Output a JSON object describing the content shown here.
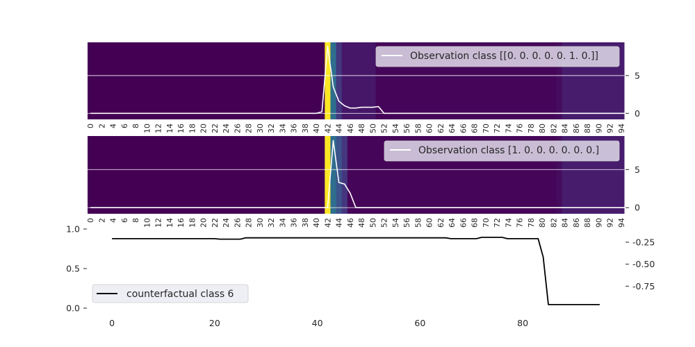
{
  "colors": {
    "viridis_low": "#440154",
    "viridis_high": "#fde725",
    "observation_line": "#ffffff",
    "counterfactual_line": "#000000",
    "legend_bg": "#eaeaf2",
    "text": "#262626"
  },
  "chart_data": [
    {
      "type": "heatmap",
      "overlay": "line",
      "legend": "Observation class [[0. 0. 0. 0. 0. 1. 0.]]",
      "legend_position": "top-right",
      "x_tick_labels": [
        "0",
        "2",
        "4",
        "6",
        "8",
        "10",
        "12",
        "14",
        "16",
        "18",
        "20",
        "22",
        "24",
        "26",
        "28",
        "30",
        "32",
        "34",
        "36",
        "38",
        "40",
        "42",
        "44",
        "46",
        "48",
        "50",
        "52",
        "54",
        "56",
        "58",
        "60",
        "62",
        "64",
        "66",
        "68",
        "70",
        "72",
        "74",
        "76",
        "78",
        "80",
        "82",
        "84",
        "86",
        "88",
        "90",
        "92",
        "94"
      ],
      "y_ticks_right": [
        0,
        5
      ],
      "ylim": [
        -0.8,
        9.4
      ],
      "grid": true,
      "heat_segments": [
        {
          "from": 0,
          "to": 42,
          "level": 0.0
        },
        {
          "from": 42,
          "to": 43,
          "level": 1.0
        },
        {
          "from": 43,
          "to": 44,
          "level": 0.45
        },
        {
          "from": 44,
          "to": 45,
          "level": 0.2
        },
        {
          "from": 45,
          "to": 51,
          "level": 0.08
        },
        {
          "from": 51,
          "to": 83,
          "level": 0.02
        },
        {
          "from": 83,
          "to": 84,
          "level": 0.04
        },
        {
          "from": 84,
          "to": 95,
          "level": 0.1
        }
      ],
      "series": [
        {
          "x": [
            0,
            38,
            39,
            40,
            41,
            42,
            43,
            44,
            45,
            46,
            47,
            48,
            49,
            50,
            51,
            52,
            95
          ],
          "y": [
            0,
            0,
            0,
            0,
            0.2,
            8.9,
            3.5,
            1.6,
            1.0,
            0.7,
            0.7,
            0.8,
            0.8,
            0.8,
            0.9,
            0,
            0
          ]
        }
      ]
    },
    {
      "type": "heatmap",
      "overlay": "line",
      "legend": "Observation class [1. 0. 0. 0. 0. 0. 0.]",
      "legend_position": "top-right",
      "x_tick_labels": [
        "0",
        "2",
        "4",
        "6",
        "8",
        "10",
        "12",
        "14",
        "16",
        "18",
        "20",
        "22",
        "24",
        "26",
        "28",
        "30",
        "32",
        "34",
        "36",
        "38",
        "40",
        "42",
        "44",
        "46",
        "48",
        "50",
        "52",
        "54",
        "56",
        "58",
        "60",
        "62",
        "64",
        "66",
        "68",
        "70",
        "72",
        "74",
        "76",
        "78",
        "80",
        "82",
        "84",
        "86",
        "88",
        "90",
        "92",
        "94"
      ],
      "y_ticks_right": [
        0,
        5
      ],
      "ylim": [
        -0.8,
        9.4
      ],
      "grid": true,
      "heat_segments": [
        {
          "from": 0,
          "to": 42,
          "level": 0.0
        },
        {
          "from": 42,
          "to": 43,
          "level": 1.0
        },
        {
          "from": 43,
          "to": 44,
          "level": 0.45
        },
        {
          "from": 44,
          "to": 45,
          "level": 0.32
        },
        {
          "from": 45,
          "to": 46,
          "level": 0.2
        },
        {
          "from": 46,
          "to": 83,
          "level": 0.02
        },
        {
          "from": 83,
          "to": 84,
          "level": 0.04
        },
        {
          "from": 84,
          "to": 95,
          "level": 0.1
        }
      ],
      "series": [
        {
          "x": [
            0,
            41,
            42,
            43,
            44,
            45,
            46,
            47,
            95
          ],
          "y": [
            0,
            0,
            0,
            8.8,
            3.3,
            3.1,
            1.9,
            0,
            0
          ]
        }
      ]
    },
    {
      "type": "line",
      "legend": "counterfactual class 6",
      "legend_position": "bottom-left",
      "xlim": [
        -4.75,
        99.75
      ],
      "x_ticks": [
        0,
        20,
        40,
        60,
        80
      ],
      "left_ylim": [
        0,
        1
      ],
      "left_y_ticks": [
        "0.0",
        "0.5",
        "1.0"
      ],
      "right_ylim": [
        -1.0,
        -0.1
      ],
      "right_y_ticks": [
        "-0.25",
        "-0.50",
        "-0.75"
      ],
      "grid": false,
      "series": [
        {
          "name": "counterfactual class 6",
          "x": [
            0,
            20,
            21,
            25,
            26,
            40,
            41,
            65,
            66,
            71,
            72,
            76,
            77,
            82,
            83,
            84,
            85,
            95
          ],
          "y": [
            -0.21,
            -0.21,
            -0.215,
            -0.215,
            -0.2,
            -0.2,
            -0.2,
            -0.2,
            -0.21,
            -0.21,
            -0.195,
            -0.195,
            -0.21,
            -0.21,
            -0.21,
            -0.42,
            -0.96,
            -0.96
          ]
        }
      ]
    }
  ]
}
